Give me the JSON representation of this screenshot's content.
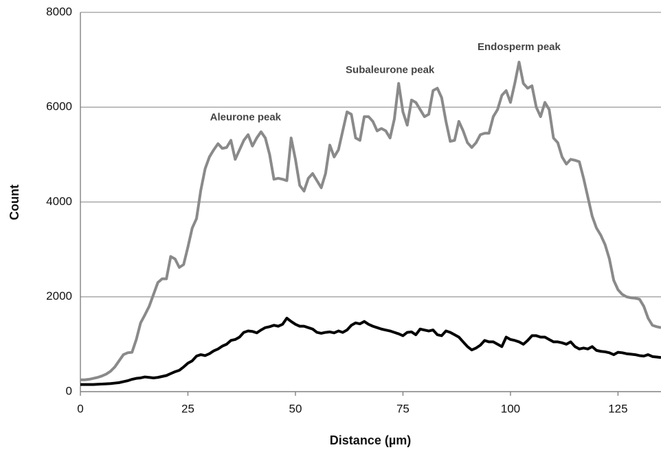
{
  "chart_data": {
    "type": "line",
    "x_label": "Distance (µm)",
    "y_label": "Count",
    "x": [
      0,
      1,
      2,
      3,
      4,
      5,
      6,
      7,
      8,
      9,
      10,
      11,
      12,
      13,
      14,
      15,
      16,
      17,
      18,
      19,
      20,
      21,
      22,
      23,
      24,
      25,
      26,
      27,
      28,
      29,
      30,
      31,
      32,
      33,
      34,
      35,
      36,
      37,
      38,
      39,
      40,
      41,
      42,
      43,
      44,
      45,
      46,
      47,
      48,
      49,
      50,
      51,
      52,
      53,
      54,
      55,
      56,
      57,
      58,
      59,
      60,
      61,
      62,
      63,
      64,
      65,
      66,
      67,
      68,
      69,
      70,
      71,
      72,
      73,
      74,
      75,
      76,
      77,
      78,
      79,
      80,
      81,
      82,
      83,
      84,
      85,
      86,
      87,
      88,
      89,
      90,
      91,
      92,
      93,
      94,
      95,
      96,
      97,
      98,
      99,
      100,
      101,
      102,
      103,
      104,
      105,
      106,
      107,
      108,
      109,
      110,
      111,
      112,
      113,
      114,
      115,
      116,
      117,
      118,
      119,
      120,
      121,
      122,
      123,
      124,
      125,
      126,
      127,
      128,
      129,
      130,
      131,
      132,
      133,
      134,
      135
    ],
    "series": [
      {
        "color": "#8a8a8a",
        "values": [
          250,
          250,
          260,
          280,
          300,
          330,
          370,
          430,
          520,
          650,
          780,
          820,
          830,
          1100,
          1450,
          1620,
          1800,
          2050,
          2300,
          2380,
          2380,
          2850,
          2800,
          2620,
          2680,
          3050,
          3450,
          3650,
          4250,
          4700,
          4950,
          5100,
          5230,
          5130,
          5150,
          5300,
          4900,
          5100,
          5300,
          5420,
          5180,
          5350,
          5480,
          5350,
          5000,
          4480,
          4500,
          4480,
          4450,
          5350,
          4900,
          4350,
          4230,
          4500,
          4600,
          4450,
          4300,
          4600,
          5200,
          4950,
          5100,
          5500,
          5900,
          5850,
          5350,
          5300,
          5800,
          5800,
          5700,
          5500,
          5550,
          5500,
          5350,
          5750,
          6500,
          5900,
          5620,
          6150,
          6100,
          5950,
          5800,
          5850,
          6350,
          6400,
          6200,
          5700,
          5280,
          5300,
          5700,
          5500,
          5250,
          5150,
          5250,
          5420,
          5450,
          5450,
          5800,
          5950,
          6250,
          6350,
          6100,
          6500,
          6950,
          6500,
          6400,
          6450,
          6000,
          5800,
          6100,
          5950,
          5350,
          5250,
          4950,
          4800,
          4900,
          4880,
          4850,
          4500,
          4100,
          3700,
          3450,
          3300,
          3100,
          2800,
          2350,
          2150,
          2050,
          2000,
          1980,
          1970,
          1950,
          1800,
          1550,
          1400,
          1370,
          1350
        ]
      },
      {
        "color": "#000000",
        "values": [
          150,
          150,
          150,
          150,
          155,
          160,
          165,
          170,
          180,
          190,
          210,
          230,
          260,
          280,
          290,
          310,
          300,
          290,
          300,
          320,
          340,
          380,
          420,
          450,
          520,
          600,
          650,
          750,
          780,
          760,
          800,
          860,
          900,
          960,
          1000,
          1080,
          1100,
          1150,
          1250,
          1280,
          1270,
          1240,
          1300,
          1350,
          1370,
          1400,
          1380,
          1420,
          1550,
          1480,
          1420,
          1380,
          1380,
          1350,
          1320,
          1250,
          1230,
          1250,
          1260,
          1240,
          1280,
          1250,
          1300,
          1400,
          1450,
          1430,
          1480,
          1420,
          1380,
          1350,
          1320,
          1300,
          1280,
          1250,
          1220,
          1180,
          1250,
          1260,
          1200,
          1320,
          1300,
          1280,
          1300,
          1200,
          1180,
          1280,
          1250,
          1200,
          1150,
          1050,
          950,
          880,
          920,
          980,
          1080,
          1050,
          1050,
          1000,
          950,
          1150,
          1100,
          1080,
          1050,
          1000,
          1080,
          1180,
          1180,
          1150,
          1150,
          1100,
          1050,
          1050,
          1030,
          1000,
          1050,
          950,
          900,
          920,
          900,
          950,
          870,
          850,
          840,
          820,
          780,
          830,
          820,
          800,
          790,
          780,
          760,
          750,
          780,
          740,
          730,
          720
        ]
      }
    ],
    "annotations": [
      {
        "text": "Aleurone peak",
        "x": 38.4,
        "y": 5780
      },
      {
        "text": "Subaleurone peak",
        "x": 72,
        "y": 6780
      },
      {
        "text": "Endosperm peak",
        "x": 102,
        "y": 7260
      }
    ],
    "xlim": [
      0,
      135
    ],
    "ylim": [
      0,
      8000
    ],
    "xticks": [
      0,
      25,
      50,
      75,
      100,
      125
    ],
    "yticks": [
      0,
      2000,
      4000,
      6000,
      8000
    ],
    "grid": true
  }
}
